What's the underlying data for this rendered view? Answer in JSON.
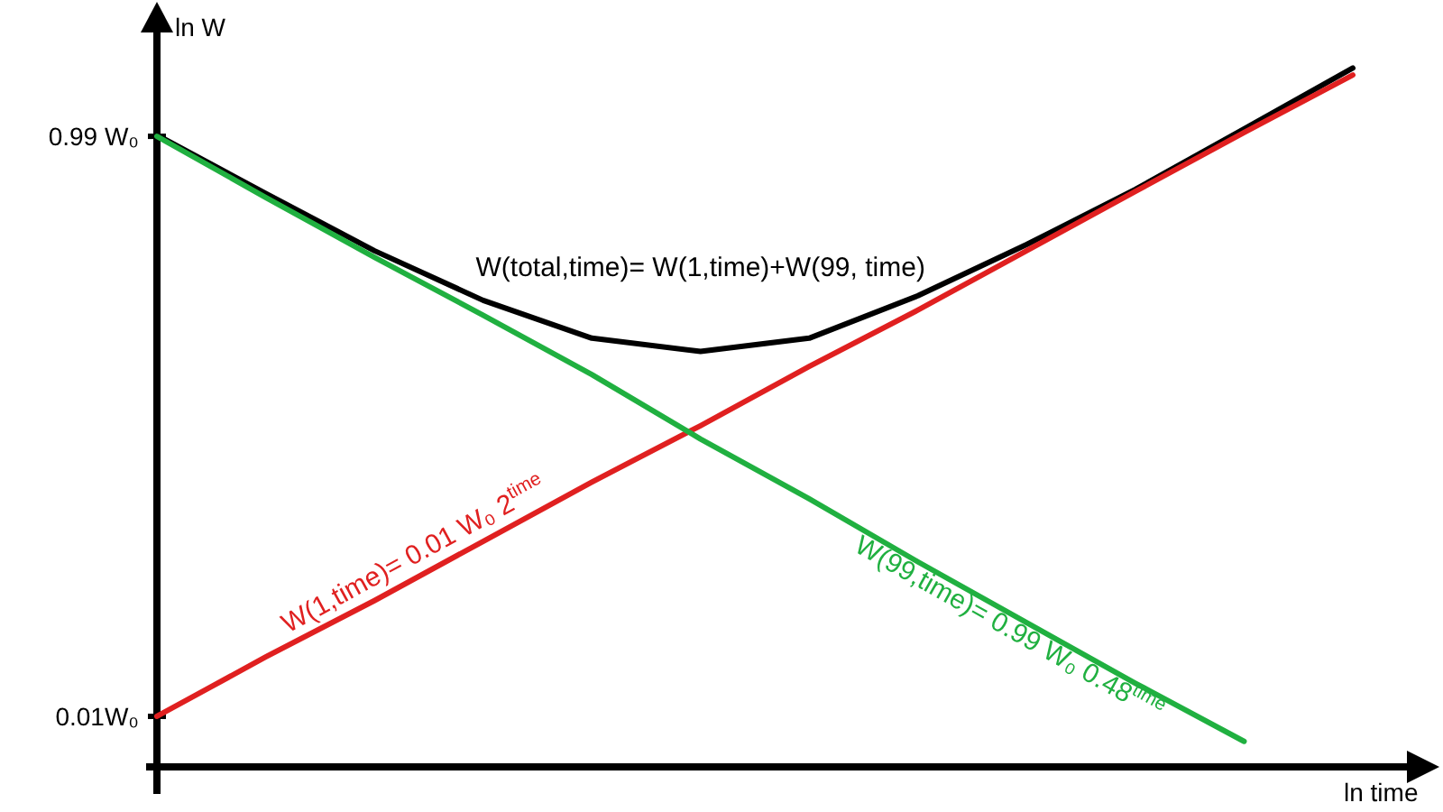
{
  "chart_data": {
    "type": "line",
    "xlabel": "ln time",
    "ylabel": "ln W",
    "categories": [
      null,
      null,
      null,
      null,
      null,
      null,
      null,
      null,
      null,
      null,
      null,
      null
    ],
    "series": [
      {
        "name": "W(total,time)= W(1,time)+W(99, time)",
        "color": "#000000",
        "values": [
          1.0,
          0.63,
          0.4,
          0.27,
          0.2,
          0.18,
          0.2,
          0.28,
          0.42,
          0.65,
          1.05,
          1.7
        ]
      },
      {
        "name": "W(1,time)= 0.01 W₀ 2$^{time}$",
        "color": "#e02020",
        "values": [
          0.01,
          0.016,
          0.025,
          0.04,
          0.064,
          0.1,
          0.16,
          0.25,
          0.4,
          0.64,
          1.02,
          1.61
        ]
      },
      {
        "name": "W(99,time)= 0.99 W₀ 0.48$^{time}$",
        "color": "#20b040",
        "values": [
          0.99,
          0.61,
          0.38,
          0.24,
          0.15,
          0.09,
          0.056,
          0.034,
          0.021,
          0.013,
          0.0082,
          null
        ]
      }
    ],
    "log": "y",
    "ylim": [
      0.0067,
      2.6
    ],
    "yticks": [
      {
        "value": 0.99,
        "label": "0.99 W₀"
      },
      {
        "value": 0.01,
        "label": "0.01W₀"
      }
    ],
    "tick_labels": "y",
    "marker": "none",
    "line_style": "solid"
  }
}
